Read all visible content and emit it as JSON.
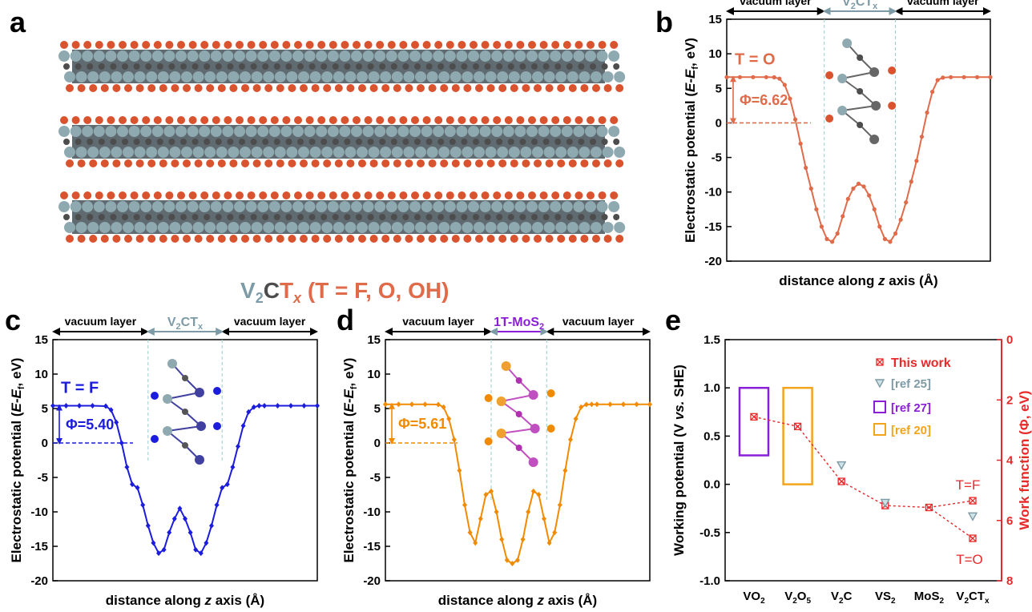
{
  "panel_labels": {
    "a": "a",
    "b": "b",
    "c": "c",
    "d": "d",
    "e": "e"
  },
  "structure": {
    "formula_v": "V",
    "formula_v_sub": "2",
    "formula_c": "C",
    "formula_t": "T",
    "formula_x": "x",
    "formula_rest": " (T = F, O, OH)"
  },
  "colors": {
    "O_series": "#e06b4b",
    "F_series": "#1c1cdd",
    "MoS2_series": "#f28a00",
    "this_work": "#e8292a",
    "ref25": "#7d9ba6",
    "ref27": "#8b1fd8",
    "ref20": "#f2a51a",
    "slab_label": "#7d9ba6",
    "mos2_label": "#8b1fd8",
    "atom_V": "#8fa9b0",
    "atom_C": "#4d4d4d",
    "atom_O": "#d9532e"
  },
  "chart_data": [
    {
      "panel": "b",
      "type": "line",
      "marker": "circle",
      "title": "",
      "xlabel_pre": "distance along ",
      "xlabel_italic": "z",
      "xlabel_post": " axis (Å)",
      "ylabel_pre": "Electrostatic potential (",
      "ylabel_it1": "E",
      "ylabel_mid": "-",
      "ylabel_it2": "E",
      "ylabel_sub": "f",
      "ylabel_post": ", eV)",
      "ylim": [
        -20,
        15
      ],
      "yticks": [
        "-20",
        "-15",
        "-10",
        "-5",
        "0",
        "5",
        "10",
        "15"
      ],
      "vacuum_left": "vacuum layer",
      "vacuum_right": "vacuum layer",
      "slab_label": "V",
      "slab_sub1": "2",
      "slab_mid": "CT",
      "slab_sub2": "x",
      "termination_label": "T = O",
      "phi_label": "Φ=6.62",
      "x": [
        0,
        0.05,
        0.1,
        0.15,
        0.18,
        0.2,
        0.22,
        0.24,
        0.26,
        0.28,
        0.3,
        0.32,
        0.34,
        0.36,
        0.38,
        0.4,
        0.42,
        0.44,
        0.46,
        0.48,
        0.5,
        0.52,
        0.54,
        0.56,
        0.58,
        0.6,
        0.62,
        0.64,
        0.66,
        0.68,
        0.7,
        0.72,
        0.74,
        0.76,
        0.78,
        0.8,
        0.82,
        0.85,
        0.9,
        0.95,
        1.0
      ],
      "values": [
        6.62,
        6.62,
        6.62,
        6.62,
        6.6,
        6.4,
        5.5,
        3.5,
        0.5,
        -3,
        -6.5,
        -9.5,
        -12.5,
        -15,
        -16.8,
        -17.2,
        -16,
        -13.5,
        -11,
        -9.5,
        -8.8,
        -9.2,
        -10.5,
        -12.5,
        -15,
        -16.8,
        -17.2,
        -16,
        -14,
        -11.5,
        -8.5,
        -5.5,
        -2,
        1.5,
        4.5,
        6.2,
        6.55,
        6.62,
        6.62,
        6.62,
        6.62
      ]
    },
    {
      "panel": "c",
      "type": "line",
      "marker": "diamond",
      "title": "",
      "xlabel_pre": "distance along ",
      "xlabel_italic": "z",
      "xlabel_post": " axis (Å)",
      "ylabel_pre": "Electrostatic potential (",
      "ylabel_it1": "E",
      "ylabel_mid": "-",
      "ylabel_it2": "E",
      "ylabel_sub": "f",
      "ylabel_post": ", eV)",
      "ylim": [
        -20,
        15
      ],
      "yticks": [
        "-20",
        "-15",
        "-10",
        "-5",
        "0",
        "5",
        "10",
        "15"
      ],
      "vacuum_left": "vacuum layer",
      "vacuum_right": "vacuum layer",
      "slab_label": "V",
      "slab_sub1": "2",
      "slab_mid": "CT",
      "slab_sub2": "x",
      "termination_label": "T = F",
      "phi_label": "Φ=5.40",
      "x": [
        0,
        0.05,
        0.1,
        0.15,
        0.2,
        0.22,
        0.24,
        0.26,
        0.28,
        0.3,
        0.32,
        0.34,
        0.36,
        0.38,
        0.4,
        0.42,
        0.44,
        0.46,
        0.48,
        0.5,
        0.52,
        0.54,
        0.56,
        0.58,
        0.6,
        0.62,
        0.64,
        0.66,
        0.68,
        0.7,
        0.72,
        0.74,
        0.76,
        0.78,
        0.8,
        0.85,
        0.9,
        0.95,
        1.0
      ],
      "values": [
        5.4,
        5.4,
        5.4,
        5.4,
        5.35,
        4.8,
        3,
        0,
        -3.5,
        -6,
        -6.5,
        -9,
        -12,
        -14.5,
        -16,
        -15.5,
        -13,
        -11,
        -9.5,
        -11,
        -13,
        -15.5,
        -16,
        -14.5,
        -12,
        -9,
        -6.5,
        -6,
        -3.5,
        -0.5,
        2.5,
        4.5,
        5.2,
        5.4,
        5.4,
        5.4,
        5.4,
        5.4,
        5.4
      ]
    },
    {
      "panel": "d",
      "type": "line",
      "marker": "diamond",
      "title": "",
      "xlabel_pre": "distance along ",
      "xlabel_italic": "z",
      "xlabel_post": " axis (Å)",
      "ylabel_pre": "Electrostatic potential (",
      "ylabel_it1": "E",
      "ylabel_mid": "-",
      "ylabel_it2": "E",
      "ylabel_sub": "f",
      "ylabel_post": ", eV)",
      "ylim": [
        -20,
        15
      ],
      "yticks": [
        "-20",
        "-15",
        "-10",
        "-5",
        "0",
        "5",
        "10",
        "15"
      ],
      "vacuum_left": "vacuum layer",
      "vacuum_right": "vacuum layer",
      "slab_label": "1T-MoS",
      "slab_sub1": "2",
      "slab_mid": "",
      "slab_sub2": "",
      "termination_label": "",
      "phi_label": "Φ=5.61",
      "x": [
        0,
        0.05,
        0.1,
        0.15,
        0.2,
        0.22,
        0.24,
        0.26,
        0.28,
        0.3,
        0.32,
        0.34,
        0.36,
        0.38,
        0.4,
        0.42,
        0.44,
        0.46,
        0.48,
        0.5,
        0.52,
        0.54,
        0.56,
        0.58,
        0.6,
        0.62,
        0.64,
        0.66,
        0.68,
        0.7,
        0.72,
        0.74,
        0.76,
        0.78,
        0.8,
        0.85,
        0.9,
        0.95,
        1.0
      ],
      "values": [
        5.61,
        5.61,
        5.61,
        5.61,
        5.58,
        5.2,
        3.5,
        0.5,
        -4,
        -9,
        -13,
        -14.5,
        -11,
        -7.5,
        -7,
        -10,
        -14,
        -17,
        -17.5,
        -17,
        -14,
        -10,
        -7,
        -7.5,
        -11,
        -14.5,
        -13,
        -9,
        -4,
        0.5,
        3.5,
        5.2,
        5.58,
        5.61,
        5.61,
        5.61,
        5.61,
        5.61,
        5.61
      ]
    },
    {
      "panel": "e",
      "type": "scatter",
      "title": "",
      "ylabel_pre": "Working potential (V ",
      "ylabel_italic": "vs.",
      "ylabel_post": " SHE)",
      "y2label": "Work function (Φ, eV)",
      "ylim": [
        -1.0,
        1.5
      ],
      "yticks": [
        "-1.0",
        "-0.5",
        "0.0",
        "0.5",
        "1.0",
        "1.5"
      ],
      "y2lim": [
        0,
        8
      ],
      "y2ticks": [
        "0",
        "2",
        "4",
        "6",
        "8"
      ],
      "categories": [
        {
          "base": "VO",
          "sub": "2",
          "tail": ""
        },
        {
          "base": "V",
          "sub": "2",
          "tail": "O",
          "sub2": "5"
        },
        {
          "base": "V",
          "sub": "2",
          "tail": "C",
          "sub2": ""
        },
        {
          "base": "VS",
          "sub": "2",
          "tail": ""
        },
        {
          "base": "MoS",
          "sub": "2",
          "tail": ""
        },
        {
          "base": "V",
          "sub": "2",
          "tail": "CT",
          "sub2": "x"
        }
      ],
      "this_work": {
        "name": "This work",
        "values": [
          0.7,
          0.6,
          0.03,
          -0.22,
          -0.24,
          -0.56
        ],
        "extra": {
          "index": 5,
          "value": -0.17
        }
      },
      "ref25": {
        "name": "[ref 25]",
        "points": [
          {
            "index": 2,
            "value": 0.2
          },
          {
            "index": 3,
            "value": -0.19
          },
          {
            "index": 5,
            "value": -0.33
          }
        ]
      },
      "ref27": {
        "name": "[ref 27]",
        "box": {
          "index": 0,
          "low": 0.3,
          "high": 1.0
        }
      },
      "ref20": {
        "name": "[ref 20]",
        "box": {
          "index": 1,
          "low": 0.0,
          "high": 1.0
        }
      },
      "annotations": [
        "T=F",
        "T=O"
      ]
    }
  ]
}
